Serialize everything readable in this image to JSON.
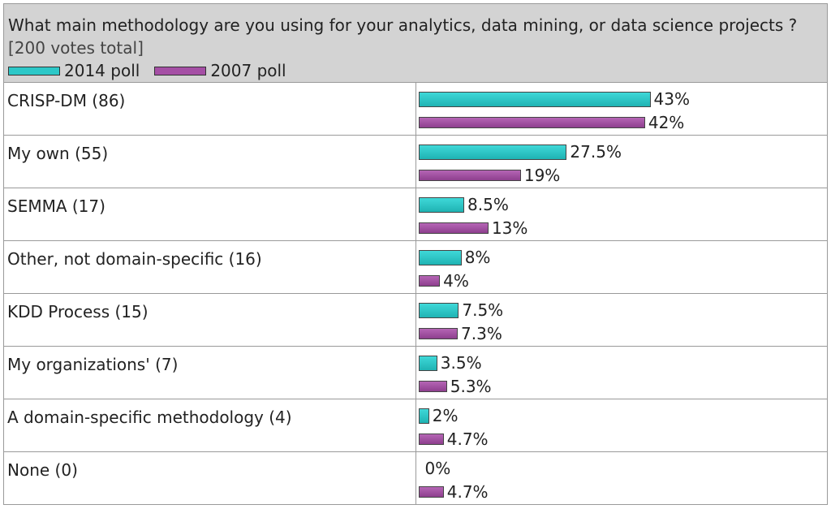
{
  "chart_data": {
    "type": "bar",
    "orientation": "horizontal",
    "title": "What main methodology are you using for your analytics, data mining, or data science projects ?",
    "title_note": "[200 votes total]",
    "categories": [
      "CRISP-DM (86)",
      "My own (55)",
      "SEMMA (17)",
      "Other, not domain-specific (16)",
      "KDD Process (15)",
      "My organizations' (7)",
      "A domain-specific methodology (4)",
      "None (0)"
    ],
    "series": [
      {
        "name": "2014 poll",
        "color": "#2cc8c8",
        "values": [
          43,
          27.5,
          8.5,
          8,
          7.5,
          3.5,
          2,
          0
        ],
        "labels": [
          "43%",
          "27.5%",
          "8.5%",
          "8%",
          "7.5%",
          "3.5%",
          "2%",
          "0%"
        ]
      },
      {
        "name": "2007 poll",
        "color": "#a54fa5",
        "values": [
          42,
          19,
          13,
          4,
          7.3,
          5.3,
          4.7,
          4.7
        ],
        "labels": [
          "42%",
          "19%",
          "13%",
          "4%",
          "7.3%",
          "5.3%",
          "4.7%",
          "4.7%"
        ]
      }
    ],
    "legend_position": "top-left",
    "unit": "%"
  }
}
